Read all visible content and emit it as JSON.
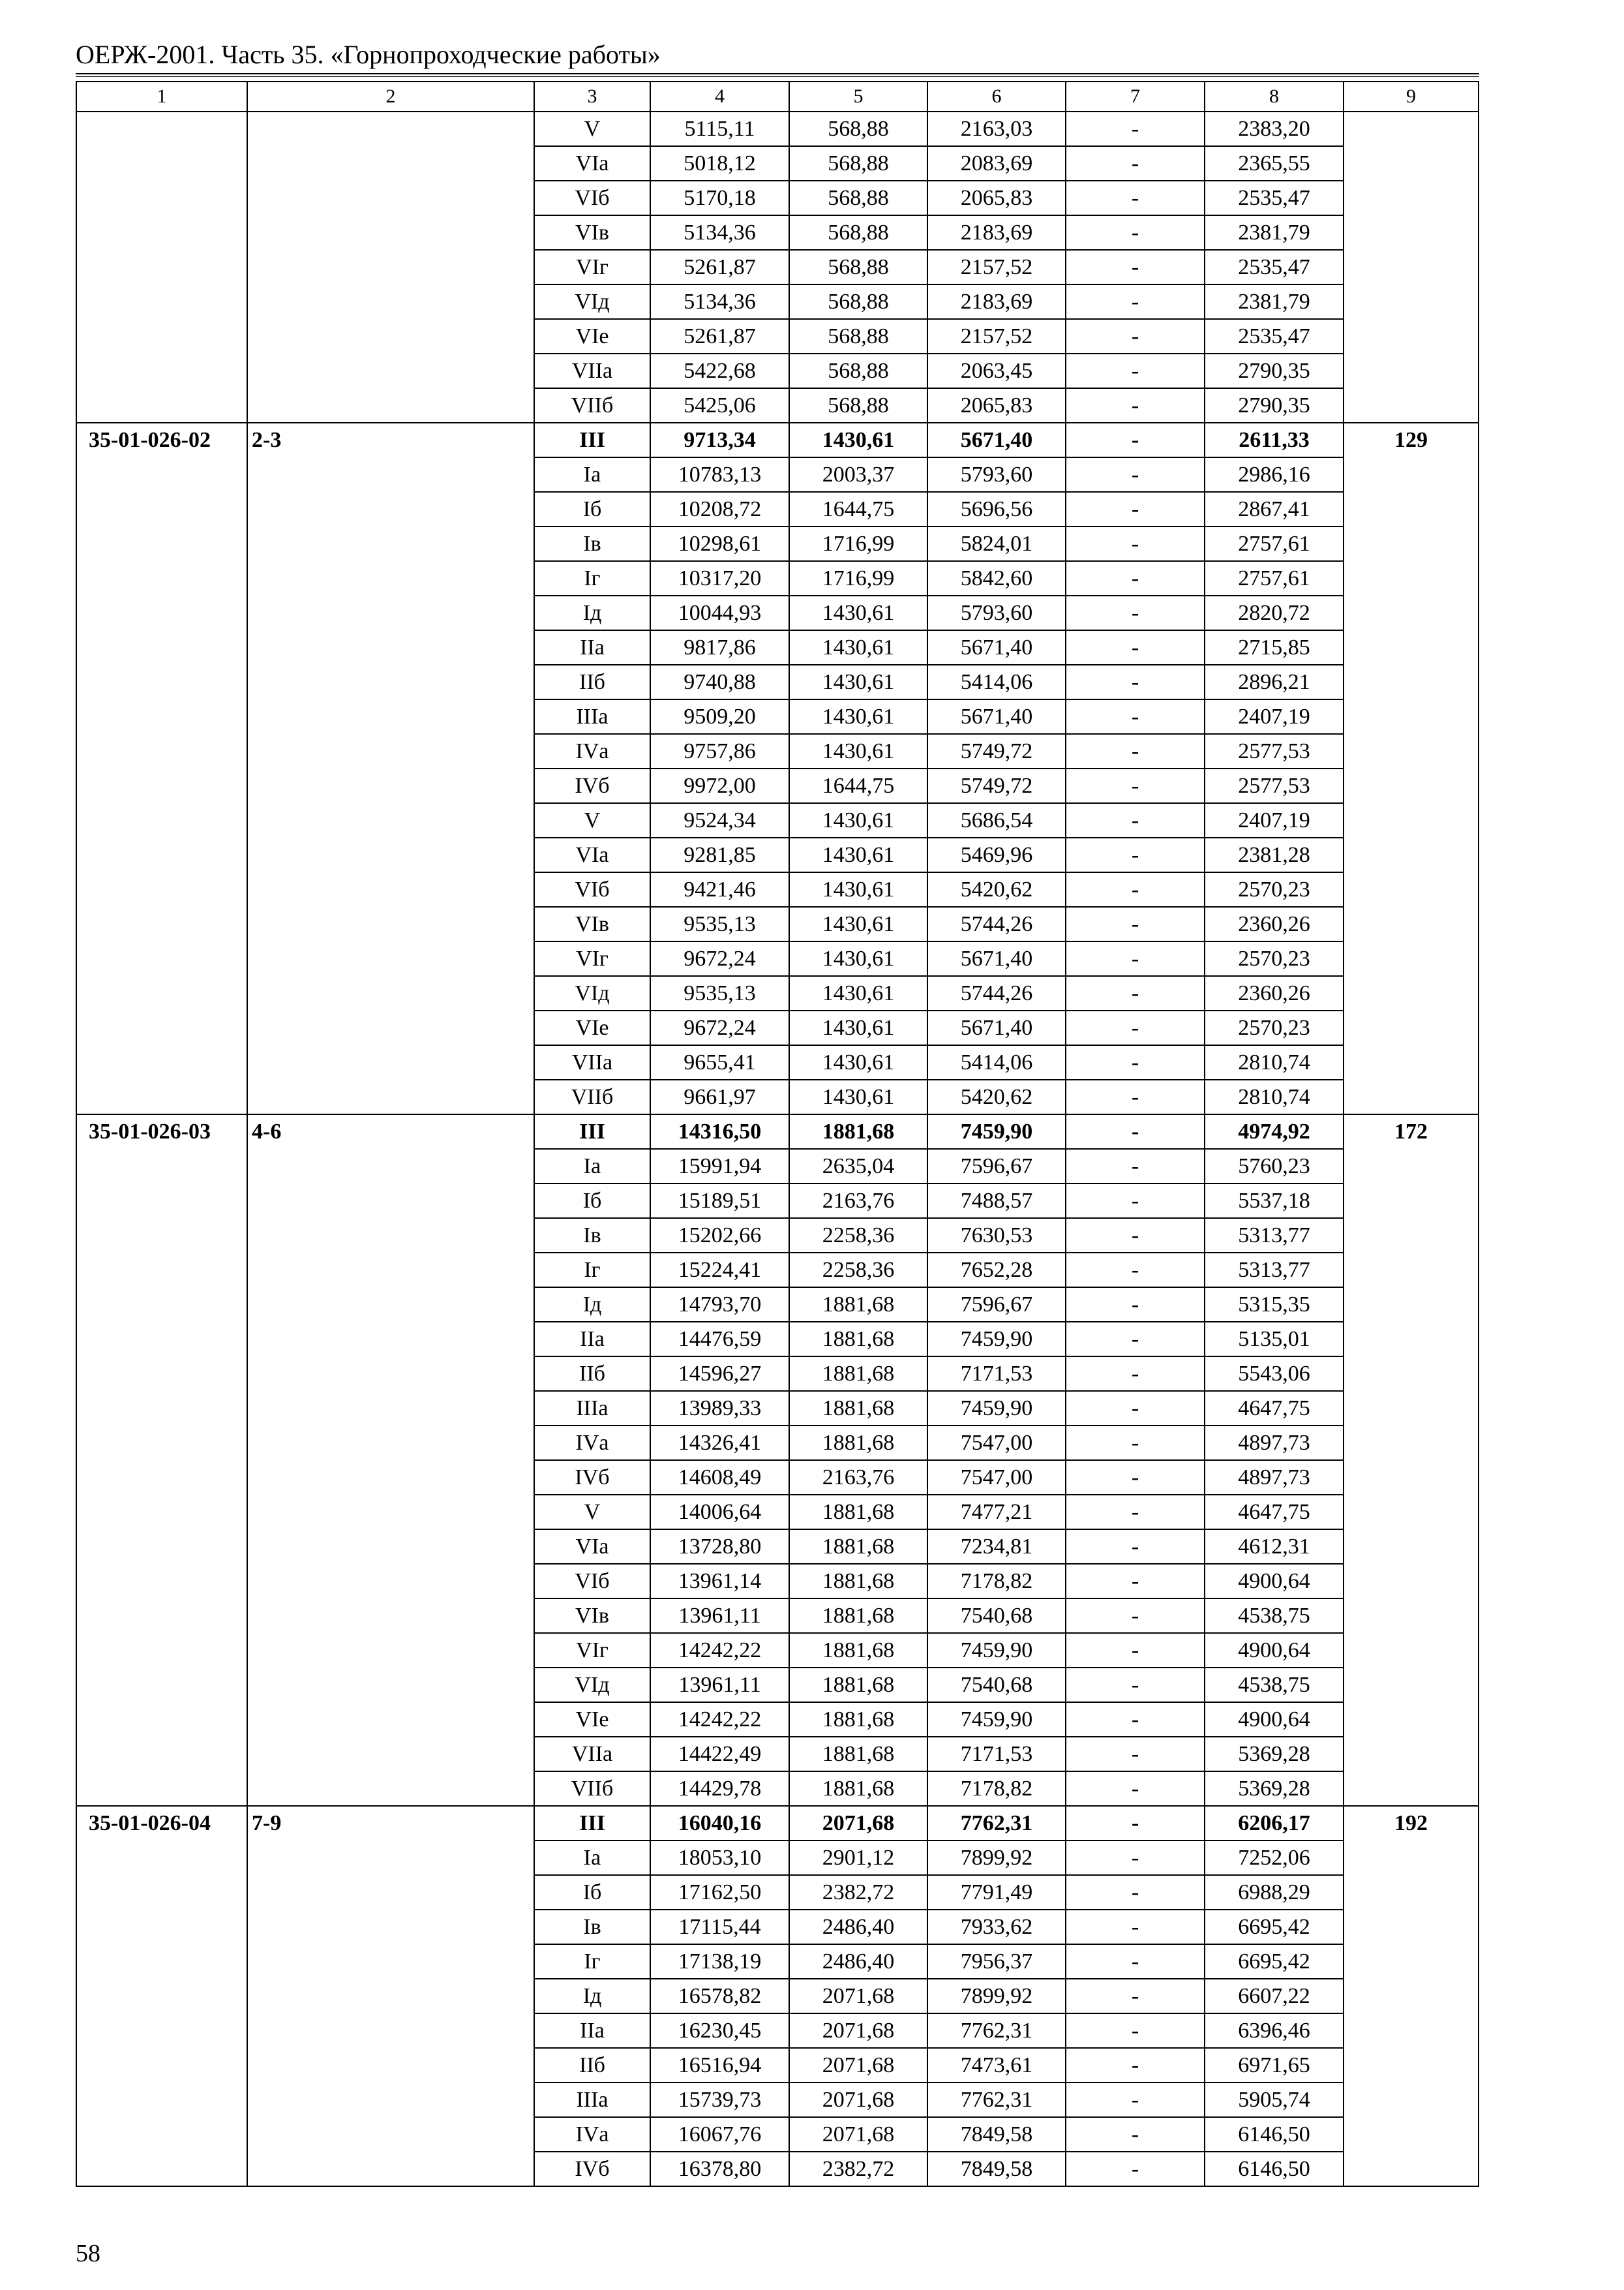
{
  "header": {
    "title": "ОЕРЖ-2001. Часть 35. «Горнопроходческие работы»"
  },
  "table": {
    "columns": [
      "1",
      "2",
      "3",
      "4",
      "5",
      "6",
      "7",
      "8",
      "9"
    ],
    "groups": [
      {
        "code": "",
        "range": "",
        "total": "",
        "rows": [
          [
            "V",
            "5115,11",
            "568,88",
            "2163,03",
            "-",
            "2383,20"
          ],
          [
            "VIа",
            "5018,12",
            "568,88",
            "2083,69",
            "-",
            "2365,55"
          ],
          [
            "VIб",
            "5170,18",
            "568,88",
            "2065,83",
            "-",
            "2535,47"
          ],
          [
            "VIв",
            "5134,36",
            "568,88",
            "2183,69",
            "-",
            "2381,79"
          ],
          [
            "VIг",
            "5261,87",
            "568,88",
            "2157,52",
            "-",
            "2535,47"
          ],
          [
            "VIд",
            "5134,36",
            "568,88",
            "2183,69",
            "-",
            "2381,79"
          ],
          [
            "VIе",
            "5261,87",
            "568,88",
            "2157,52",
            "-",
            "2535,47"
          ],
          [
            "VIIа",
            "5422,68",
            "568,88",
            "2063,45",
            "-",
            "2790,35"
          ],
          [
            "VIIб",
            "5425,06",
            "568,88",
            "2065,83",
            "-",
            "2790,35"
          ]
        ]
      },
      {
        "code": "35-01-026-02",
        "range": "2-3",
        "total": "129",
        "rows": [
          [
            "III",
            "9713,34",
            "1430,61",
            "5671,40",
            "-",
            "2611,33"
          ],
          [
            "Iа",
            "10783,13",
            "2003,37",
            "5793,60",
            "-",
            "2986,16"
          ],
          [
            "Iб",
            "10208,72",
            "1644,75",
            "5696,56",
            "-",
            "2867,41"
          ],
          [
            "Iв",
            "10298,61",
            "1716,99",
            "5824,01",
            "-",
            "2757,61"
          ],
          [
            "Iг",
            "10317,20",
            "1716,99",
            "5842,60",
            "-",
            "2757,61"
          ],
          [
            "Iд",
            "10044,93",
            "1430,61",
            "5793,60",
            "-",
            "2820,72"
          ],
          [
            "IIа",
            "9817,86",
            "1430,61",
            "5671,40",
            "-",
            "2715,85"
          ],
          [
            "IIб",
            "9740,88",
            "1430,61",
            "5414,06",
            "-",
            "2896,21"
          ],
          [
            "IIIа",
            "9509,20",
            "1430,61",
            "5671,40",
            "-",
            "2407,19"
          ],
          [
            "IVа",
            "9757,86",
            "1430,61",
            "5749,72",
            "-",
            "2577,53"
          ],
          [
            "IVб",
            "9972,00",
            "1644,75",
            "5749,72",
            "-",
            "2577,53"
          ],
          [
            "V",
            "9524,34",
            "1430,61",
            "5686,54",
            "-",
            "2407,19"
          ],
          [
            "VIа",
            "9281,85",
            "1430,61",
            "5469,96",
            "-",
            "2381,28"
          ],
          [
            "VIб",
            "9421,46",
            "1430,61",
            "5420,62",
            "-",
            "2570,23"
          ],
          [
            "VIв",
            "9535,13",
            "1430,61",
            "5744,26",
            "-",
            "2360,26"
          ],
          [
            "VIг",
            "9672,24",
            "1430,61",
            "5671,40",
            "-",
            "2570,23"
          ],
          [
            "VIд",
            "9535,13",
            "1430,61",
            "5744,26",
            "-",
            "2360,26"
          ],
          [
            "VIе",
            "9672,24",
            "1430,61",
            "5671,40",
            "-",
            "2570,23"
          ],
          [
            "VIIа",
            "9655,41",
            "1430,61",
            "5414,06",
            "-",
            "2810,74"
          ],
          [
            "VIIб",
            "9661,97",
            "1430,61",
            "5420,62",
            "-",
            "2810,74"
          ]
        ]
      },
      {
        "code": "35-01-026-03",
        "range": "4-6",
        "total": "172",
        "rows": [
          [
            "III",
            "14316,50",
            "1881,68",
            "7459,90",
            "-",
            "4974,92"
          ],
          [
            "Iа",
            "15991,94",
            "2635,04",
            "7596,67",
            "-",
            "5760,23"
          ],
          [
            "Iб",
            "15189,51",
            "2163,76",
            "7488,57",
            "-",
            "5537,18"
          ],
          [
            "Iв",
            "15202,66",
            "2258,36",
            "7630,53",
            "-",
            "5313,77"
          ],
          [
            "Iг",
            "15224,41",
            "2258,36",
            "7652,28",
            "-",
            "5313,77"
          ],
          [
            "Iд",
            "14793,70",
            "1881,68",
            "7596,67",
            "-",
            "5315,35"
          ],
          [
            "IIа",
            "14476,59",
            "1881,68",
            "7459,90",
            "-",
            "5135,01"
          ],
          [
            "IIб",
            "14596,27",
            "1881,68",
            "7171,53",
            "-",
            "5543,06"
          ],
          [
            "IIIа",
            "13989,33",
            "1881,68",
            "7459,90",
            "-",
            "4647,75"
          ],
          [
            "IVа",
            "14326,41",
            "1881,68",
            "7547,00",
            "-",
            "4897,73"
          ],
          [
            "IVб",
            "14608,49",
            "2163,76",
            "7547,00",
            "-",
            "4897,73"
          ],
          [
            "V",
            "14006,64",
            "1881,68",
            "7477,21",
            "-",
            "4647,75"
          ],
          [
            "VIа",
            "13728,80",
            "1881,68",
            "7234,81",
            "-",
            "4612,31"
          ],
          [
            "VIб",
            "13961,14",
            "1881,68",
            "7178,82",
            "-",
            "4900,64"
          ],
          [
            "VIв",
            "13961,11",
            "1881,68",
            "7540,68",
            "-",
            "4538,75"
          ],
          [
            "VIг",
            "14242,22",
            "1881,68",
            "7459,90",
            "-",
            "4900,64"
          ],
          [
            "VIд",
            "13961,11",
            "1881,68",
            "7540,68",
            "-",
            "4538,75"
          ],
          [
            "VIе",
            "14242,22",
            "1881,68",
            "7459,90",
            "-",
            "4900,64"
          ],
          [
            "VIIа",
            "14422,49",
            "1881,68",
            "7171,53",
            "-",
            "5369,28"
          ],
          [
            "VIIб",
            "14429,78",
            "1881,68",
            "7178,82",
            "-",
            "5369,28"
          ]
        ]
      },
      {
        "code": "35-01-026-04",
        "range": "7-9",
        "total": "192",
        "rows": [
          [
            "III",
            "16040,16",
            "2071,68",
            "7762,31",
            "-",
            "6206,17"
          ],
          [
            "Iа",
            "18053,10",
            "2901,12",
            "7899,92",
            "-",
            "7252,06"
          ],
          [
            "Iб",
            "17162,50",
            "2382,72",
            "7791,49",
            "-",
            "6988,29"
          ],
          [
            "Iв",
            "17115,44",
            "2486,40",
            "7933,62",
            "-",
            "6695,42"
          ],
          [
            "Iг",
            "17138,19",
            "2486,40",
            "7956,37",
            "-",
            "6695,42"
          ],
          [
            "Iд",
            "16578,82",
            "2071,68",
            "7899,92",
            "-",
            "6607,22"
          ],
          [
            "IIа",
            "16230,45",
            "2071,68",
            "7762,31",
            "-",
            "6396,46"
          ],
          [
            "IIб",
            "16516,94",
            "2071,68",
            "7473,61",
            "-",
            "6971,65"
          ],
          [
            "IIIа",
            "15739,73",
            "2071,68",
            "7762,31",
            "-",
            "5905,74"
          ],
          [
            "IVа",
            "16067,76",
            "2071,68",
            "7849,58",
            "-",
            "6146,50"
          ],
          [
            "IVб",
            "16378,80",
            "2382,72",
            "7849,58",
            "-",
            "6146,50"
          ]
        ]
      }
    ]
  },
  "footer": {
    "page_number": "58"
  }
}
